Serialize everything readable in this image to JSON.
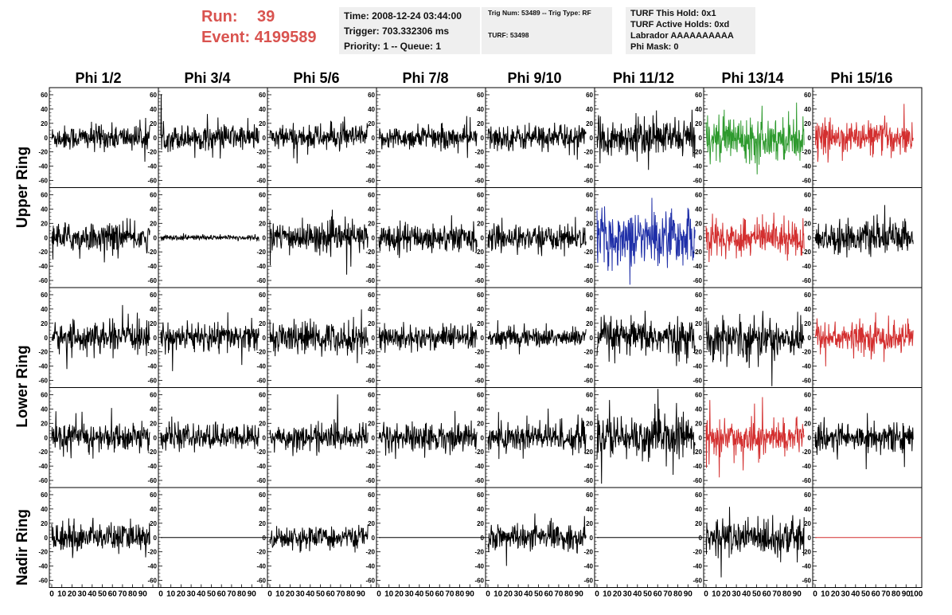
{
  "run": {
    "run_label": "Run:",
    "run_value": "39",
    "event_label": "Event:",
    "event_value": "4199589"
  },
  "info_time": {
    "time": "Time: 2008-12-24 03:44:00",
    "trigger": "Trigger: 703.332306 ms",
    "priority": "Priority: 1 -- Queue: 1"
  },
  "info_trig": {
    "trig": "Trig Num: 53489 -- Trig Type: RF",
    "turf": "TURF: 53498"
  },
  "info_turf": {
    "hold": "TURF This Hold: 0x1",
    "active": "TURF Active Holds: 0xd",
    "labrador": "Labrador AAAAAAAAAA",
    "mask": "Phi Mask: 0"
  },
  "colors": {
    "black": "#000000",
    "green": "#2e9a2e",
    "red": "#d32f2f",
    "blue": "#1f2fa8",
    "panel_bg": "#efefef",
    "title_red": "#d9534f"
  },
  "chart_data": {
    "type": "line",
    "columns": [
      "Phi 1/2",
      "Phi 3/4",
      "Phi 5/6",
      "Phi 7/8",
      "Phi 9/10",
      "Phi 11/12",
      "Phi 13/14",
      "Phi 15/16"
    ],
    "row_labels": [
      "Upper Ring",
      "Lower Ring",
      "Nadir Ring"
    ],
    "xlim": [
      0,
      100
    ],
    "ylim": [
      -70,
      70
    ],
    "xticks": [
      "0",
      "10",
      "20",
      "30",
      "40",
      "50",
      "60",
      "70",
      "80",
      "90",
      "100"
    ],
    "yticks": [
      "60",
      "40",
      "20",
      "0",
      "-20",
      "-40",
      "-60"
    ],
    "last_xtick": "100",
    "trace_colors": [
      [
        "black",
        "black",
        "black",
        "black",
        "black",
        "black",
        "green",
        "red"
      ],
      [
        "black",
        "black",
        "black",
        "black",
        "black",
        "blue",
        "red",
        "black"
      ],
      [
        "black",
        "black",
        "black",
        "black",
        "black",
        "black",
        "black",
        "red"
      ],
      [
        "black",
        "black",
        "black",
        "black",
        "black",
        "black",
        "red",
        "black"
      ],
      [
        "black",
        "flat",
        "black",
        "flat",
        "black",
        "flat",
        "black",
        "flatred"
      ]
    ],
    "amplitudes": [
      [
        14,
        14,
        14,
        13,
        14,
        20,
        24,
        18
      ],
      [
        16,
        3,
        17,
        16,
        14,
        30,
        20,
        17
      ],
      [
        16,
        16,
        18,
        14,
        11,
        20,
        22,
        17
      ],
      [
        16,
        14,
        14,
        16,
        18,
        24,
        18,
        16
      ],
      [
        16,
        0,
        12,
        0,
        14,
        0,
        20,
        0
      ]
    ]
  }
}
